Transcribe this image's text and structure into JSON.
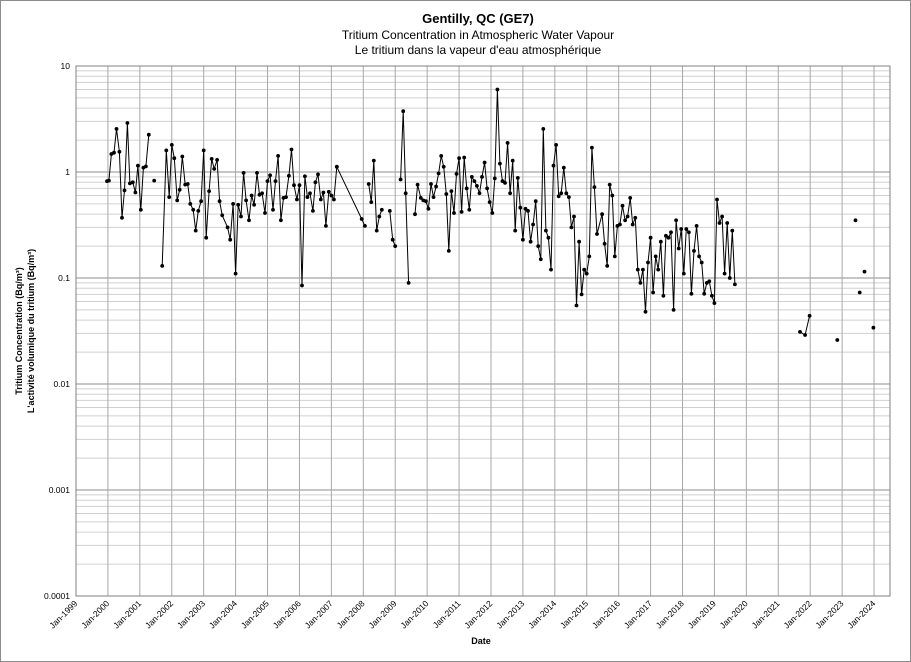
{
  "chart_data": {
    "type": "scatter",
    "title": "Gentilly, QC (GE7)",
    "subtitle_en": "Tritium Concentration in Atmospheric Water Vapour",
    "subtitle_fr": "Le tritium dans la vapeur d'eau atmosphérique",
    "xlabel": "Date",
    "ylabel_en": "Tritium Concentration (Bq/m³)",
    "ylabel_fr": "L'activité volumique du tritium (Bq/m³)",
    "y_scale": "log",
    "ylim": [
      0.0001,
      10
    ],
    "y_ticks": [
      "10",
      "1",
      "0.1",
      "0.01",
      "0.001",
      "0.0001"
    ],
    "x_ticks": [
      "Jan-1999",
      "Jan-2000",
      "Jan-2001",
      "Jan-2002",
      "Jan-2003",
      "Jan-2004",
      "Jan-2005",
      "Jan-2006",
      "Jan-2007",
      "Jan-2008",
      "Jan-2009",
      "Jan-2010",
      "Jan-2011",
      "Jan-2012",
      "Jan-2013",
      "Jan-2014",
      "Jan-2015",
      "Jan-2016",
      "Jan-2017",
      "Jan-2018",
      "Jan-2019",
      "Jan-2020",
      "Jan-2021",
      "Jan-2022",
      "Jan-2023",
      "Jan-2024"
    ],
    "xlim": [
      1999.0,
      2024.5
    ],
    "grid": true,
    "marker_color": "#000000",
    "line_color": "#000000",
    "segments": [
      [
        [
          1999.97,
          0.82
        ],
        [
          2000.03,
          0.83
        ],
        [
          2000.11,
          1.48
        ],
        [
          2000.19,
          1.52
        ],
        [
          2000.27,
          2.55
        ],
        [
          2000.36,
          1.55
        ],
        [
          2000.44,
          0.37
        ],
        [
          2000.52,
          0.67
        ],
        [
          2000.61,
          2.9
        ],
        [
          2000.69,
          0.78
        ],
        [
          2000.78,
          0.8
        ],
        [
          2000.86,
          0.64
        ],
        [
          2000.94,
          1.15
        ],
        [
          2001.03,
          0.44
        ],
        [
          2001.11,
          1.1
        ],
        [
          2001.19,
          1.13
        ],
        [
          2001.28,
          2.25
        ]
      ],
      [
        [
          2001.45,
          0.83
        ]
      ],
      [
        [
          2001.7,
          0.13
        ],
        [
          2001.83,
          1.6
        ],
        [
          2001.92,
          0.58
        ],
        [
          2002.0,
          1.8
        ],
        [
          2002.08,
          1.35
        ],
        [
          2002.17,
          0.54
        ],
        [
          2002.25,
          0.68
        ],
        [
          2002.33,
          1.4
        ],
        [
          2002.42,
          0.76
        ],
        [
          2002.5,
          0.77
        ],
        [
          2002.58,
          0.5
        ],
        [
          2002.67,
          0.44
        ],
        [
          2002.75,
          0.28
        ],
        [
          2002.83,
          0.43
        ],
        [
          2002.92,
          0.53
        ],
        [
          2003.0,
          1.6
        ],
        [
          2003.08,
          0.24
        ],
        [
          2003.17,
          0.66
        ],
        [
          2003.25,
          1.33
        ],
        [
          2003.33,
          1.07
        ],
        [
          2003.42,
          1.3
        ],
        [
          2003.5,
          0.53
        ],
        [
          2003.58,
          0.39
        ],
        [
          2003.75,
          0.3
        ],
        [
          2003.83,
          0.23
        ],
        [
          2003.92,
          0.5
        ],
        [
          2004.0,
          0.11
        ],
        [
          2004.08,
          0.49
        ],
        [
          2004.17,
          0.38
        ],
        [
          2004.25,
          0.98
        ],
        [
          2004.33,
          0.54
        ],
        [
          2004.42,
          0.35
        ],
        [
          2004.5,
          0.6
        ],
        [
          2004.58,
          0.49
        ],
        [
          2004.67,
          0.98
        ],
        [
          2004.75,
          0.61
        ],
        [
          2004.83,
          0.63
        ],
        [
          2004.92,
          0.41
        ],
        [
          2005.0,
          0.82
        ],
        [
          2005.08,
          0.93
        ],
        [
          2005.17,
          0.44
        ],
        [
          2005.25,
          0.82
        ],
        [
          2005.33,
          1.42
        ],
        [
          2005.42,
          0.35
        ],
        [
          2005.5,
          0.57
        ],
        [
          2005.58,
          0.58
        ],
        [
          2005.67,
          0.92
        ],
        [
          2005.75,
          1.63
        ],
        [
          2005.83,
          0.75
        ],
        [
          2005.92,
          0.55
        ],
        [
          2006.0,
          0.75
        ],
        [
          2006.08,
          0.085
        ],
        [
          2006.17,
          0.91
        ],
        [
          2006.25,
          0.58
        ],
        [
          2006.33,
          0.63
        ],
        [
          2006.42,
          0.43
        ],
        [
          2006.5,
          0.8
        ],
        [
          2006.58,
          0.95
        ],
        [
          2006.67,
          0.55
        ],
        [
          2006.75,
          0.64
        ],
        [
          2006.83,
          0.31
        ],
        [
          2006.92,
          0.65
        ],
        [
          2007.0,
          0.6
        ],
        [
          2007.08,
          0.55
        ],
        [
          2007.17,
          1.12
        ]
      ],
      [
        [
          2007.17,
          1.12
        ],
        [
          2007.95,
          0.36
        ],
        [
          2008.05,
          0.31
        ]
      ],
      [
        [
          2008.17,
          0.77
        ],
        [
          2008.25,
          0.52
        ],
        [
          2008.33,
          1.28
        ],
        [
          2008.42,
          0.28
        ],
        [
          2008.5,
          0.38
        ],
        [
          2008.58,
          0.44
        ]
      ],
      [
        [
          2008.83,
          0.43
        ],
        [
          2008.92,
          0.23
        ],
        [
          2009.0,
          0.2
        ]
      ],
      [
        [
          2009.17,
          0.85
        ],
        [
          2009.25,
          3.75
        ],
        [
          2009.33,
          0.63
        ],
        [
          2009.42,
          0.09
        ]
      ],
      [
        [
          2009.62,
          0.4
        ],
        [
          2009.7,
          0.76
        ],
        [
          2009.8,
          0.57
        ],
        [
          2009.88,
          0.54
        ],
        [
          2009.96,
          0.53
        ],
        [
          2010.04,
          0.45
        ],
        [
          2010.12,
          0.77
        ],
        [
          2010.2,
          0.58
        ],
        [
          2010.28,
          0.73
        ],
        [
          2010.36,
          0.97
        ],
        [
          2010.44,
          1.42
        ],
        [
          2010.52,
          1.12
        ],
        [
          2010.6,
          0.62
        ],
        [
          2010.68,
          0.18
        ],
        [
          2010.76,
          0.66
        ],
        [
          2010.84,
          0.41
        ],
        [
          2010.92,
          0.96
        ],
        [
          2011.0,
          1.35
        ],
        [
          2011.08,
          0.42
        ],
        [
          2011.16,
          1.37
        ],
        [
          2011.24,
          0.7
        ],
        [
          2011.32,
          0.44
        ],
        [
          2011.4,
          0.9
        ],
        [
          2011.48,
          0.82
        ],
        [
          2011.56,
          0.74
        ],
        [
          2011.64,
          0.63
        ],
        [
          2011.72,
          0.9
        ],
        [
          2011.8,
          1.23
        ],
        [
          2011.88,
          0.7
        ],
        [
          2011.96,
          0.52
        ],
        [
          2012.04,
          0.41
        ],
        [
          2012.12,
          0.87
        ],
        [
          2012.2,
          6.0
        ],
        [
          2012.28,
          1.2
        ],
        [
          2012.36,
          0.82
        ],
        [
          2012.44,
          0.79
        ],
        [
          2012.52,
          1.88
        ],
        [
          2012.6,
          0.63
        ],
        [
          2012.68,
          1.28
        ],
        [
          2012.76,
          0.28
        ],
        [
          2012.84,
          0.88
        ],
        [
          2012.92,
          0.46
        ],
        [
          2013.0,
          0.23
        ],
        [
          2013.08,
          0.45
        ],
        [
          2013.16,
          0.43
        ],
        [
          2013.24,
          0.22
        ],
        [
          2013.32,
          0.32
        ],
        [
          2013.4,
          0.53
        ],
        [
          2013.48,
          0.2
        ],
        [
          2013.56,
          0.15
        ],
        [
          2013.64,
          2.55
        ],
        [
          2013.72,
          0.28
        ],
        [
          2013.8,
          0.24
        ],
        [
          2013.88,
          0.12
        ],
        [
          2013.96,
          1.15
        ],
        [
          2014.04,
          1.8
        ],
        [
          2014.12,
          0.59
        ],
        [
          2014.2,
          0.63
        ],
        [
          2014.28,
          1.1
        ],
        [
          2014.36,
          0.63
        ],
        [
          2014.44,
          0.58
        ],
        [
          2014.52,
          0.3
        ],
        [
          2014.6,
          0.38
        ],
        [
          2014.68,
          0.055
        ],
        [
          2014.76,
          0.22
        ],
        [
          2014.84,
          0.07
        ],
        [
          2014.92,
          0.12
        ],
        [
          2015.0,
          0.11
        ],
        [
          2015.08,
          0.16
        ],
        [
          2015.16,
          1.7
        ],
        [
          2015.24,
          0.72
        ],
        [
          2015.32,
          0.26
        ],
        [
          2015.48,
          0.4
        ],
        [
          2015.56,
          0.21
        ],
        [
          2015.64,
          0.13
        ],
        [
          2015.72,
          0.76
        ],
        [
          2015.8,
          0.6
        ],
        [
          2015.88,
          0.16
        ],
        [
          2015.96,
          0.31
        ],
        [
          2016.04,
          0.32
        ],
        [
          2016.12,
          0.48
        ],
        [
          2016.2,
          0.35
        ],
        [
          2016.28,
          0.38
        ],
        [
          2016.36,
          0.57
        ],
        [
          2016.44,
          0.32
        ],
        [
          2016.52,
          0.37
        ],
        [
          2016.6,
          0.12
        ],
        [
          2016.68,
          0.09
        ],
        [
          2016.76,
          0.12
        ],
        [
          2016.84,
          0.048
        ],
        [
          2016.92,
          0.14
        ],
        [
          2017.0,
          0.24
        ],
        [
          2017.08,
          0.073
        ],
        [
          2017.16,
          0.16
        ],
        [
          2017.24,
          0.12
        ],
        [
          2017.32,
          0.22
        ],
        [
          2017.4,
          0.068
        ],
        [
          2017.48,
          0.25
        ],
        [
          2017.56,
          0.24
        ],
        [
          2017.64,
          0.27
        ],
        [
          2017.72,
          0.05
        ],
        [
          2017.8,
          0.35
        ],
        [
          2017.88,
          0.19
        ],
        [
          2017.96,
          0.29
        ],
        [
          2018.04,
          0.11
        ],
        [
          2018.12,
          0.29
        ],
        [
          2018.2,
          0.27
        ],
        [
          2018.28,
          0.071
        ],
        [
          2018.36,
          0.18
        ],
        [
          2018.44,
          0.31
        ],
        [
          2018.52,
          0.16
        ],
        [
          2018.6,
          0.14
        ],
        [
          2018.68,
          0.071
        ],
        [
          2018.76,
          0.09
        ],
        [
          2018.84,
          0.093
        ],
        [
          2018.92,
          0.068
        ],
        [
          2019.0,
          0.058
        ],
        [
          2019.08,
          0.55
        ],
        [
          2019.16,
          0.33
        ],
        [
          2019.24,
          0.38
        ],
        [
          2019.32,
          0.11
        ],
        [
          2019.4,
          0.33
        ],
        [
          2019.48,
          0.1
        ],
        [
          2019.56,
          0.28
        ],
        [
          2019.64,
          0.087
        ]
      ],
      [
        [
          2021.68,
          0.031
        ],
        [
          2021.84,
          0.029
        ],
        [
          2021.98,
          0.044
        ]
      ],
      [
        [
          2022.85,
          0.026
        ]
      ],
      [
        [
          2023.42,
          0.35
        ]
      ],
      [
        [
          2023.55,
          0.073
        ]
      ],
      [
        [
          2023.7,
          0.115
        ]
      ],
      [
        [
          2023.98,
          0.034
        ]
      ]
    ]
  }
}
